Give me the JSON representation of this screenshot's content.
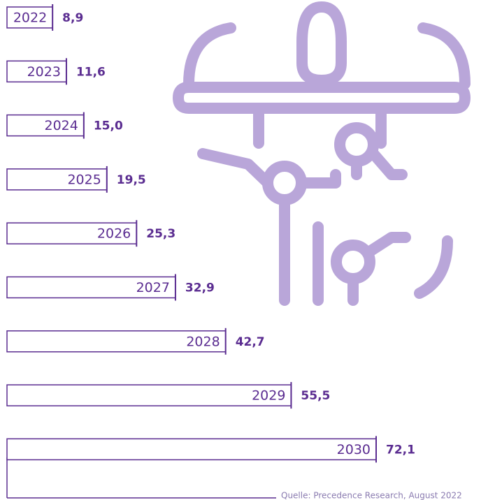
{
  "chart_data": {
    "type": "bar",
    "orientation": "horizontal",
    "categories": [
      "2022",
      "2023",
      "2024",
      "2025",
      "2026",
      "2027",
      "2028",
      "2029",
      "2030"
    ],
    "values": [
      8.9,
      11.6,
      15.0,
      19.5,
      25.3,
      32.9,
      42.7,
      55.5,
      72.1
    ],
    "value_labels": [
      "8,9",
      "11,6",
      "15,0",
      "19,5",
      "25,3",
      "32,9",
      "42,7",
      "55,5",
      "72,1"
    ],
    "color": "#5b2d91",
    "source": "Quelle: Precedence Research, August 2022"
  }
}
